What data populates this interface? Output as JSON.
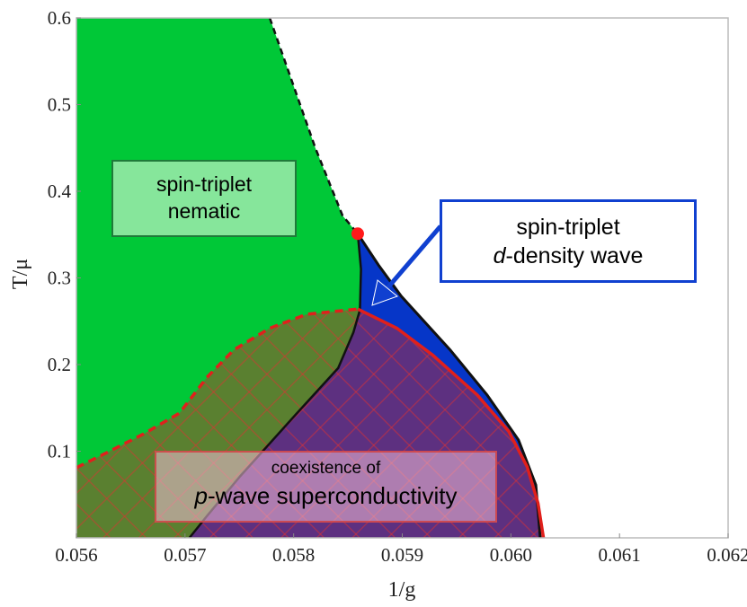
{
  "chart_data": {
    "type": "area",
    "title": "",
    "xlabel": "1/g",
    "ylabel": "T/μ",
    "xlim": [
      0.056,
      0.062
    ],
    "ylim": [
      0,
      0.6
    ],
    "xticks": [
      "0.056",
      "0.057",
      "0.058",
      "0.059",
      "0.060",
      "0.061",
      "0.062"
    ],
    "yticks": [
      "0.1",
      "0.2",
      "0.3",
      "0.4",
      "0.5",
      "0.6"
    ],
    "grid": false,
    "boundaries": {
      "nematic_dashed": [
        [
          0.05778,
          0.6
        ],
        [
          0.0582,
          0.45
        ],
        [
          0.05845,
          0.372
        ],
        [
          0.05859,
          0.351
        ]
      ],
      "nematic_lower": [
        [
          0.05859,
          0.351
        ],
        [
          0.05862,
          0.31
        ],
        [
          0.05861,
          0.263
        ],
        [
          0.05855,
          0.237
        ],
        [
          0.05841,
          0.196
        ],
        [
          0.05801,
          0.141
        ],
        [
          0.05751,
          0.0715
        ],
        [
          0.0572,
          0.025
        ],
        [
          0.05704,
          0
        ]
      ],
      "dwave_outer": [
        [
          0.05859,
          0.351
        ],
        [
          0.05878,
          0.315
        ],
        [
          0.05899,
          0.279
        ],
        [
          0.05944,
          0.217
        ],
        [
          0.05978,
          0.165
        ],
        [
          0.06007,
          0.113
        ],
        [
          0.06023,
          0.061
        ],
        [
          0.06027,
          0
        ]
      ],
      "sc_dashed": [
        [
          0.056,
          0.081
        ],
        [
          0.05629,
          0.099
        ],
        [
          0.05662,
          0.12
        ],
        [
          0.05695,
          0.144
        ],
        [
          0.0572,
          0.185
        ],
        [
          0.05745,
          0.217
        ],
        [
          0.05778,
          0.242
        ],
        [
          0.05812,
          0.258
        ],
        [
          0.05859,
          0.264
        ]
      ],
      "sc_solid": [
        [
          0.05859,
          0.264
        ],
        [
          0.05895,
          0.242
        ],
        [
          0.05928,
          0.211
        ],
        [
          0.05969,
          0.165
        ],
        [
          0.05998,
          0.123
        ],
        [
          0.06015,
          0.082
        ],
        [
          0.06025,
          0.04
        ],
        [
          0.0603,
          0
        ]
      ]
    },
    "tricritical_point": [
      0.05859,
      0.351
    ],
    "colors": {
      "nematic": "#00c837",
      "dwave": "#0636c8",
      "sc_overlay": "#c82828",
      "point": "#ff1a1a"
    },
    "annotations": {
      "nematic": {
        "line1": "spin-triplet",
        "line2": "nematic"
      },
      "dwave": {
        "line1": "spin-triplet",
        "line2_italic": "d",
        "line2_rest": "-density wave"
      },
      "sc": {
        "line1": "coexistence of",
        "line2_italic": "p",
        "line2_rest": "-wave superconductivity"
      }
    }
  }
}
